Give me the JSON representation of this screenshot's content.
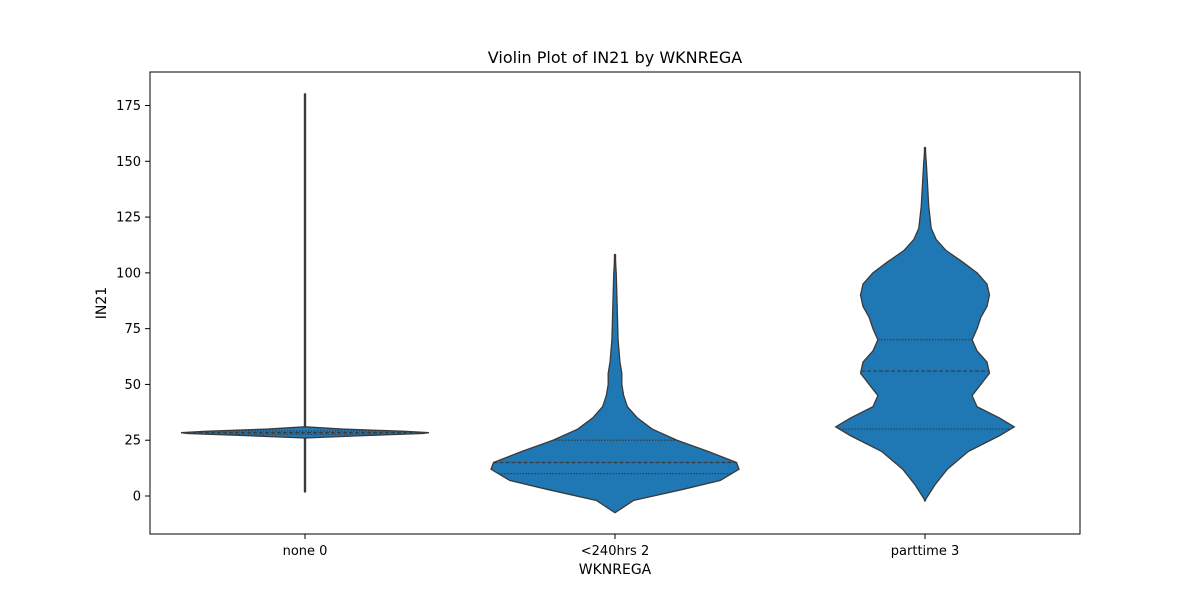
{
  "chart_data": {
    "type": "violin",
    "title": "Violin Plot of IN21 by WKNREGA",
    "xlabel": "WKNREGA",
    "ylabel": "IN21",
    "ylim": [
      -15,
      190
    ],
    "yticks": [
      0,
      25,
      50,
      75,
      100,
      125,
      150,
      175
    ],
    "grid": false,
    "legend": "none",
    "colors": {
      "fill": "#1f77b4",
      "edge": "#3a3a3a",
      "frame": "#000000"
    },
    "categories": [
      {
        "label": "none 0",
        "data_min": 2,
        "data_max": 180,
        "kde_min": 26,
        "kde_max": 31,
        "quartiles": [
          27.7,
          28.4,
          29.1
        ],
        "density": [
          [
            26.0,
            0.0
          ],
          [
            27.0,
            0.45
          ],
          [
            28.0,
            0.95
          ],
          [
            28.4,
            1.0
          ],
          [
            29.0,
            0.8
          ],
          [
            30.0,
            0.3
          ],
          [
            31.0,
            0.0
          ]
        ]
      },
      {
        "label": "<240hrs 2",
        "data_min": 0,
        "data_max": 108,
        "kde_min": -7.5,
        "kde_max": 108,
        "quartiles": [
          10,
          15,
          25
        ],
        "density": [
          [
            -7.5,
            0.0
          ],
          [
            -2,
            0.15
          ],
          [
            3,
            0.55
          ],
          [
            7,
            0.85
          ],
          [
            12,
            1.0
          ],
          [
            15,
            0.98
          ],
          [
            20,
            0.75
          ],
          [
            25,
            0.5
          ],
          [
            30,
            0.3
          ],
          [
            35,
            0.18
          ],
          [
            40,
            0.1
          ],
          [
            45,
            0.07
          ],
          [
            50,
            0.055
          ],
          [
            55,
            0.055
          ],
          [
            60,
            0.04
          ],
          [
            70,
            0.025
          ],
          [
            80,
            0.02
          ],
          [
            90,
            0.015
          ],
          [
            100,
            0.01
          ],
          [
            108,
            0.0
          ]
        ]
      },
      {
        "label": "parttime 3",
        "data_min": -2,
        "data_max": 156,
        "kde_min": -2,
        "kde_max": 156,
        "quartiles": [
          30,
          56,
          70
        ],
        "density": [
          [
            -2,
            0.0
          ],
          [
            5,
            0.08
          ],
          [
            12,
            0.18
          ],
          [
            20,
            0.35
          ],
          [
            27,
            0.6
          ],
          [
            31,
            0.72
          ],
          [
            35,
            0.6
          ],
          [
            40,
            0.42
          ],
          [
            45,
            0.38
          ],
          [
            50,
            0.45
          ],
          [
            55,
            0.52
          ],
          [
            60,
            0.5
          ],
          [
            65,
            0.42
          ],
          [
            70,
            0.38
          ],
          [
            75,
            0.42
          ],
          [
            80,
            0.45
          ],
          [
            85,
            0.5
          ],
          [
            90,
            0.52
          ],
          [
            95,
            0.5
          ],
          [
            100,
            0.42
          ],
          [
            105,
            0.3
          ],
          [
            110,
            0.17
          ],
          [
            115,
            0.09
          ],
          [
            120,
            0.05
          ],
          [
            130,
            0.03
          ],
          [
            140,
            0.02
          ],
          [
            150,
            0.01
          ],
          [
            156,
            0.0
          ]
        ]
      }
    ]
  }
}
